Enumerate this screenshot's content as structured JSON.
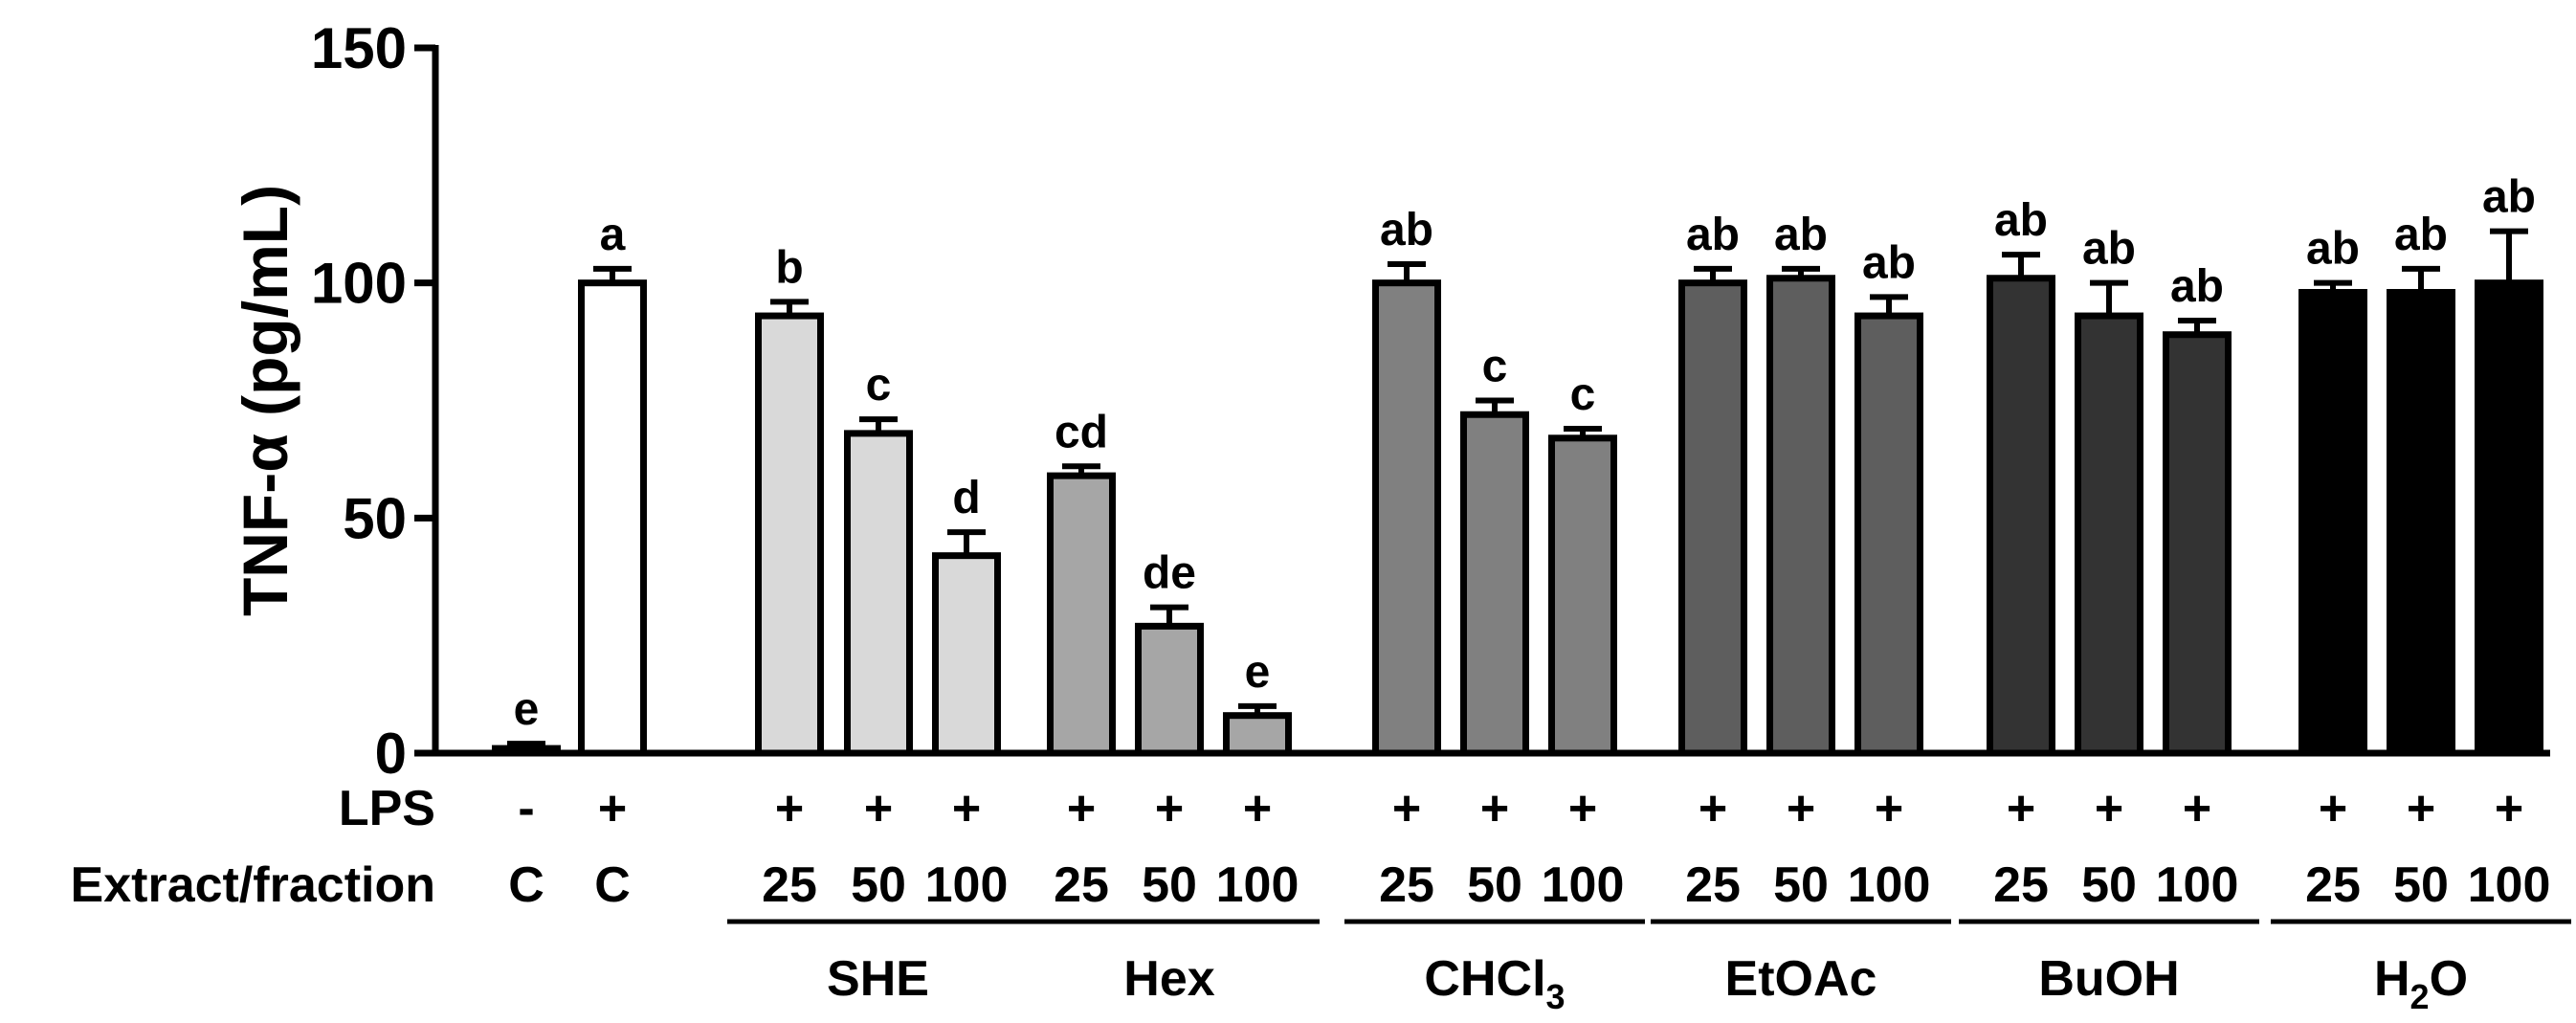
{
  "chart_data": {
    "type": "bar",
    "title": "",
    "ylabel": "TNF-α (pg/mL)",
    "ylim": [
      0,
      150
    ],
    "yticks": [
      0,
      50,
      100,
      150
    ],
    "row_labels": {
      "lps": "LPS",
      "extract": "Extract/fraction"
    },
    "bars": [
      {
        "group": "control",
        "lps": "-",
        "dose": "C",
        "value": 1,
        "error": 1,
        "sig": "e",
        "color": "#ffffff"
      },
      {
        "group": "control",
        "lps": "+",
        "dose": "C",
        "value": 100,
        "error": 3,
        "sig": "a",
        "color": "#ffffff"
      },
      {
        "group": "SHE",
        "lps": "+",
        "dose": "25",
        "value": 93,
        "error": 3,
        "sig": "b",
        "color": "#d9d9d9"
      },
      {
        "group": "SHE",
        "lps": "+",
        "dose": "50",
        "value": 68,
        "error": 3,
        "sig": "c",
        "color": "#d9d9d9"
      },
      {
        "group": "SHE",
        "lps": "+",
        "dose": "100",
        "value": 42,
        "error": 5,
        "sig": "d",
        "color": "#d9d9d9"
      },
      {
        "group": "Hex",
        "lps": "+",
        "dose": "25",
        "value": 59,
        "error": 2,
        "sig": "cd",
        "color": "#a6a6a6"
      },
      {
        "group": "Hex",
        "lps": "+",
        "dose": "50",
        "value": 27,
        "error": 4,
        "sig": "de",
        "color": "#a6a6a6"
      },
      {
        "group": "Hex",
        "lps": "+",
        "dose": "100",
        "value": 8,
        "error": 2,
        "sig": "e",
        "color": "#a6a6a6"
      },
      {
        "group": "CHCl3",
        "lps": "+",
        "dose": "25",
        "value": 100,
        "error": 4,
        "sig": "ab",
        "color": "#808080"
      },
      {
        "group": "CHCl3",
        "lps": "+",
        "dose": "50",
        "value": 72,
        "error": 3,
        "sig": "c",
        "color": "#808080"
      },
      {
        "group": "CHCl3",
        "lps": "+",
        "dose": "100",
        "value": 67,
        "error": 2,
        "sig": "c",
        "color": "#808080"
      },
      {
        "group": "EtOAc",
        "lps": "+",
        "dose": "25",
        "value": 100,
        "error": 3,
        "sig": "ab",
        "color": "#5e5e5e"
      },
      {
        "group": "EtOAc",
        "lps": "+",
        "dose": "50",
        "value": 101,
        "error": 2,
        "sig": "ab",
        "color": "#5e5e5e"
      },
      {
        "group": "EtOAc",
        "lps": "+",
        "dose": "100",
        "value": 93,
        "error": 4,
        "sig": "ab",
        "color": "#5e5e5e"
      },
      {
        "group": "BuOH",
        "lps": "+",
        "dose": "25",
        "value": 101,
        "error": 5,
        "sig": "ab",
        "color": "#333333"
      },
      {
        "group": "BuOH",
        "lps": "+",
        "dose": "50",
        "value": 93,
        "error": 7,
        "sig": "ab",
        "color": "#333333"
      },
      {
        "group": "BuOH",
        "lps": "+",
        "dose": "100",
        "value": 89,
        "error": 3,
        "sig": "ab",
        "color": "#333333"
      },
      {
        "group": "H2O",
        "lps": "+",
        "dose": "25",
        "value": 98,
        "error": 2,
        "sig": "ab",
        "color": "#000000"
      },
      {
        "group": "H2O",
        "lps": "+",
        "dose": "50",
        "value": 98,
        "error": 5,
        "sig": "ab",
        "color": "#000000"
      },
      {
        "group": "H2O",
        "lps": "+",
        "dose": "100",
        "value": 100,
        "error": 11,
        "sig": "ab",
        "color": "#000000"
      }
    ],
    "groups": [
      {
        "id": "SHE",
        "label": "SHE",
        "sub": ""
      },
      {
        "id": "Hex",
        "label": "Hex",
        "sub": ""
      },
      {
        "id": "CHCl3",
        "label": "CHCl",
        "sub": "3"
      },
      {
        "id": "EtOAc",
        "label": "EtOAc",
        "sub": ""
      },
      {
        "id": "BuOH",
        "label": "BuOH",
        "sub": ""
      },
      {
        "id": "H2O",
        "label": "H",
        "sub": "2",
        "suffix": "O"
      }
    ]
  }
}
